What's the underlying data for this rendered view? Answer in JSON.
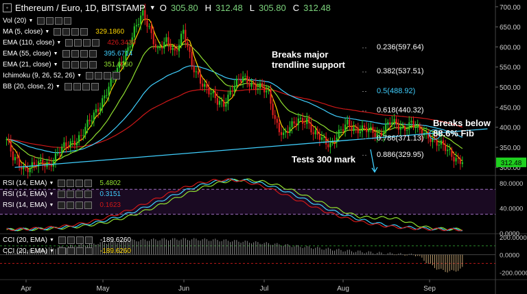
{
  "header": {
    "symbol": "Ethereum / Euro, 1D, BITSTAMP",
    "o_label": "O",
    "o": "305.80",
    "h_label": "H",
    "h": "312.48",
    "l_label": "L",
    "l": "305.80",
    "c_label": "C",
    "c": "312.48"
  },
  "legend": [
    {
      "label": "Vol (20)",
      "value": "",
      "color": "#ffffff"
    },
    {
      "label": "MA (5, close)",
      "value": "329.1860",
      "color": "#ffd700"
    },
    {
      "label": "EMA (110, close)",
      "value": "426.3430",
      "color": "#d01818"
    },
    {
      "label": "EMA (55, close)",
      "value": "395.6714",
      "color": "#40d0ff"
    },
    {
      "label": "EMA (21, close)",
      "value": "351.6260",
      "color": "#90e030"
    },
    {
      "label": "Ichimoku (9, 26, 52, 26)",
      "value": "",
      "color": "#ffffff"
    },
    {
      "label": "BB (20, close, 2)",
      "value": "",
      "color": "#ffffff"
    }
  ],
  "annotations": {
    "trendline": "Breaks major\ntrendline support",
    "fib": "Breaks below\n88.6% Fib",
    "tests": "Tests 300 mark"
  },
  "fib_levels": [
    {
      "label": "0.236(597.64)",
      "color": "#ffffff"
    },
    {
      "label": "0.382(537.51)",
      "color": "#ffffff"
    },
    {
      "label": "0.5(488.92)",
      "color": "#40d0ff"
    },
    {
      "label": "0.618(440.32)",
      "color": "#ffffff"
    },
    {
      "label": "0.786(371.13)",
      "color": "#ffffff"
    },
    {
      "label": "0.886(329.95)",
      "color": "#ffffff"
    }
  ],
  "rsi_legend": [
    {
      "label": "RSI (14, EMA)",
      "value": "5.4802",
      "color": "#90e030"
    },
    {
      "label": "RSI (14, EMA)",
      "value": "0.3151",
      "color": "#40d0ff"
    },
    {
      "label": "RSI (14, EMA)",
      "value": "0.1623",
      "color": "#d01818"
    }
  ],
  "cci_legend": [
    {
      "label": "CCI (20, EMA)",
      "value": "-189.6260",
      "color": "#ffffff"
    },
    {
      "label": "CCI (20, EMA)",
      "value": "-189.6260",
      "color": "#ffd700"
    }
  ],
  "colors": {
    "up": "#27c427",
    "down": "#e01e1e",
    "bg": "#000000",
    "ma5": "#ffd700",
    "ema110": "#d01818",
    "ema55": "#40d0ff",
    "ema21": "#90e030",
    "trend": "#40d0ff",
    "price_tag": "#1fd01f"
  },
  "chart_data": {
    "type": "candlestick",
    "x_ticks": [
      "Apr",
      "May",
      "Jun",
      "Jul",
      "Aug",
      "Sep"
    ],
    "price_ticks": [
      700,
      650,
      600,
      550,
      500,
      450,
      400,
      350,
      300
    ],
    "price_tick_labels": [
      "700.00",
      "650.00",
      "600.00",
      "550.00",
      "500.00",
      "450.00",
      "400.00",
      "350.00",
      "300.00"
    ],
    "ylim": [
      285,
      710
    ],
    "last_price": "312.48",
    "close_anchors": [
      [
        0,
        370
      ],
      [
        3,
        320
      ],
      [
        8,
        300
      ],
      [
        14,
        305
      ],
      [
        20,
        310
      ],
      [
        25,
        340
      ],
      [
        30,
        360
      ],
      [
        35,
        380
      ],
      [
        40,
        420
      ],
      [
        45,
        470
      ],
      [
        52,
        540
      ],
      [
        57,
        600
      ],
      [
        60,
        640
      ],
      [
        64,
        680
      ],
      [
        67,
        650
      ],
      [
        71,
        590
      ],
      [
        75,
        610
      ],
      [
        79,
        590
      ],
      [
        83,
        640
      ],
      [
        87,
        550
      ],
      [
        91,
        520
      ],
      [
        95,
        490
      ],
      [
        99,
        460
      ],
      [
        102,
        460
      ],
      [
        106,
        500
      ],
      [
        111,
        520
      ],
      [
        115,
        510
      ],
      [
        119,
        500
      ],
      [
        123,
        480
      ],
      [
        126,
        420
      ],
      [
        130,
        380
      ],
      [
        134,
        400
      ],
      [
        137,
        420
      ],
      [
        141,
        420
      ],
      [
        144,
        380
      ],
      [
        149,
        370
      ],
      [
        152,
        360
      ],
      [
        156,
        380
      ],
      [
        160,
        410
      ],
      [
        165,
        395
      ],
      [
        170,
        390
      ],
      [
        175,
        385
      ],
      [
        180,
        410
      ],
      [
        186,
        400
      ],
      [
        190,
        410
      ],
      [
        193,
        390
      ],
      [
        198,
        382
      ],
      [
        202,
        360
      ],
      [
        207,
        342
      ],
      [
        212,
        320
      ],
      [
        214,
        312.48
      ]
    ],
    "trendline": [
      [
        0,
        300
      ],
      [
        200,
        380
      ]
    ],
    "fib_values": [
      597.64,
      537.51,
      488.92,
      440.32,
      371.13,
      329.95
    ],
    "rsi": {
      "ticks": [
        80,
        40,
        0
      ],
      "tick_labels": [
        "80.0000",
        "40.0000",
        "0.0000"
      ],
      "overbought": 70,
      "oversold": 30,
      "ylim": [
        0,
        90
      ]
    },
    "cci": {
      "ticks": [
        200,
        0,
        -200
      ],
      "tick_labels": [
        "200.0000",
        "0.0000",
        "-200.0000"
      ],
      "upper": 100,
      "lower": -100,
      "ylim": [
        -260,
        230
      ]
    }
  }
}
